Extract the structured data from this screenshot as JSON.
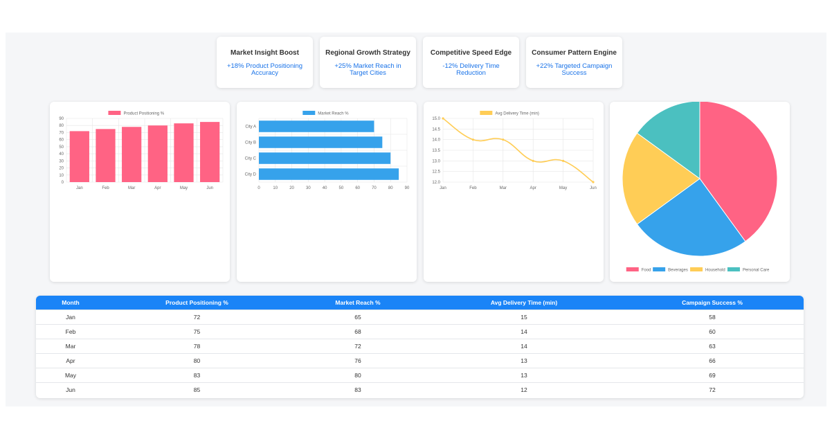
{
  "kpis": [
    {
      "title": "Market Insight Boost",
      "value": "+18% Product Positioning Accuracy"
    },
    {
      "title": "Regional Growth Strategy",
      "value": "+25% Market Reach in Target Cities"
    },
    {
      "title": "Competitive Speed Edge",
      "value": "-12% Delivery Time Reduction"
    },
    {
      "title": "Consumer Pattern Engine",
      "value": "+22% Targeted Campaign Success"
    }
  ],
  "chart_data": [
    {
      "type": "bar",
      "categories": [
        "Jan",
        "Feb",
        "Mar",
        "Apr",
        "May",
        "Jun"
      ],
      "series": [
        {
          "name": "Product Positioning %",
          "values": [
            72,
            75,
            78,
            80,
            83,
            85
          ]
        }
      ],
      "ylim": [
        0,
        90
      ],
      "yticks": [
        0,
        10,
        20,
        30,
        40,
        50,
        60,
        70,
        80,
        90
      ],
      "color": "#ff6384",
      "legend": "top",
      "grid": true
    },
    {
      "type": "bar",
      "orientation": "horizontal",
      "categories": [
        "City A",
        "City B",
        "City C",
        "City D"
      ],
      "series": [
        {
          "name": "Market Reach %",
          "values": [
            70,
            75,
            80,
            85
          ]
        }
      ],
      "xlim": [
        0,
        90
      ],
      "xticks": [
        0,
        10,
        20,
        30,
        40,
        50,
        60,
        70,
        80,
        90
      ],
      "color": "#36a2eb",
      "legend": "top",
      "grid": true
    },
    {
      "type": "line",
      "categories": [
        "Jan",
        "Feb",
        "Mar",
        "Apr",
        "May",
        "Jun"
      ],
      "series": [
        {
          "name": "Avg Delivery Time (min)",
          "values": [
            15,
            14,
            14,
            13,
            13,
            12
          ]
        }
      ],
      "ylim": [
        12,
        15
      ],
      "yticks": [
        "12.0",
        "12.5",
        "13.0",
        "13.5",
        "14.0",
        "14.5",
        "15.0"
      ],
      "color": "#ffcd56",
      "legend": "top",
      "grid": true
    },
    {
      "type": "pie",
      "labels": [
        "Food",
        "Beverages",
        "Household",
        "Personal Care"
      ],
      "values": [
        40,
        25,
        20,
        15
      ],
      "colors": [
        "#ff6384",
        "#36a2eb",
        "#ffcd56",
        "#4bc0c0"
      ],
      "legend": "bottom"
    }
  ],
  "table": {
    "headers": [
      "Month",
      "Product Positioning %",
      "Market Reach %",
      "Avg Delivery Time (min)",
      "Campaign Success %"
    ],
    "rows": [
      [
        "Jan",
        "72",
        "65",
        "15",
        "58"
      ],
      [
        "Feb",
        "75",
        "68",
        "14",
        "60"
      ],
      [
        "Mar",
        "78",
        "72",
        "14",
        "63"
      ],
      [
        "Apr",
        "80",
        "76",
        "13",
        "66"
      ],
      [
        "May",
        "83",
        "80",
        "13",
        "69"
      ],
      [
        "Jun",
        "85",
        "83",
        "12",
        "72"
      ]
    ]
  }
}
